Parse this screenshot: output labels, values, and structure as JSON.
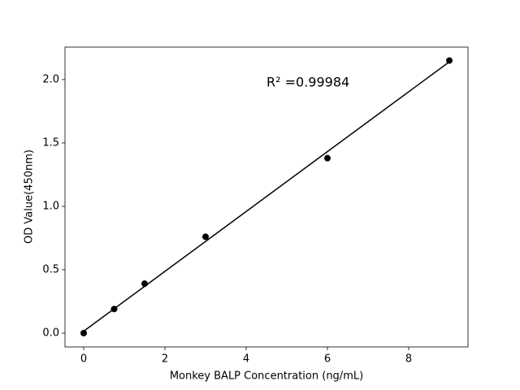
{
  "chart_data": {
    "type": "scatter",
    "x_label": "Monkey BALP Concentration (ng/mL)",
    "y_label": "OD Value(450nm)",
    "annotation": "R² =0.99984",
    "x": [
      0,
      0.75,
      1.5,
      3,
      6,
      9
    ],
    "values": [
      0.0,
      0.19,
      0.39,
      0.76,
      1.38,
      2.15
    ],
    "color": "#000000",
    "fit_line": {
      "x": [
        0,
        9
      ],
      "values": [
        0.015,
        2.14
      ],
      "color": "#000000"
    },
    "xlim": [
      -0.46,
      9.46
    ],
    "xticks": [
      0,
      2,
      4,
      6,
      8
    ],
    "ylim": [
      -0.109,
      2.256
    ],
    "yticks": [
      {
        "value": 0,
        "label": "0.0"
      },
      0.5,
      {
        "value": 1,
        "label": "1.0"
      },
      1.5,
      {
        "value": 2,
        "label": "2.0"
      }
    ],
    "grid": false
  }
}
